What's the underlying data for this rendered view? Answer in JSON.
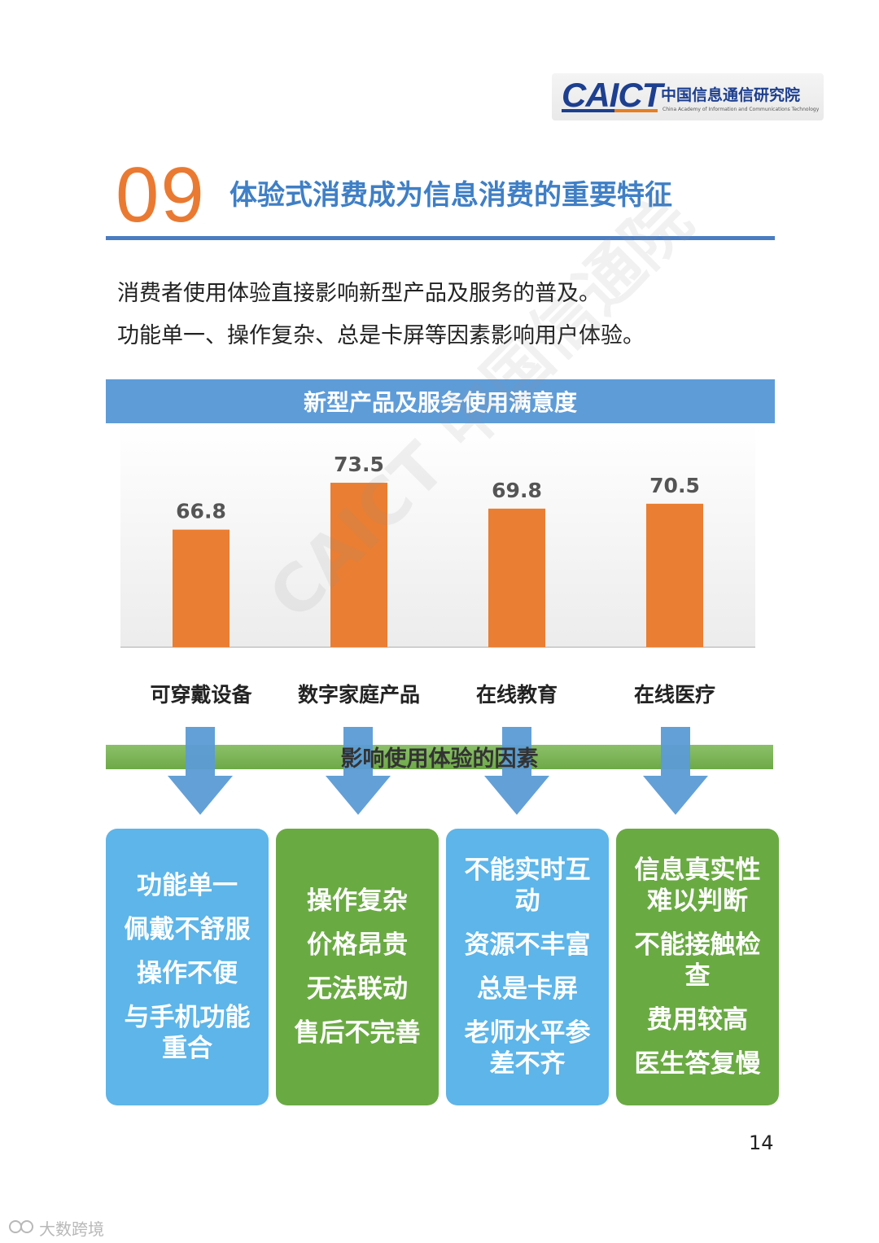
{
  "header": {
    "logo_mark": "CAICT",
    "logo_cn": "中国信息通信研究院",
    "logo_en": "China Academy of Information and Communications Technology"
  },
  "section": {
    "number": "09",
    "title": "体验式消费成为信息消费的重要特征"
  },
  "intro": {
    "line1": "消费者使用体验直接影响新型产品及服务的普及。",
    "line2": "功能单一、操作复杂、总是卡屏等因素影响用户体验。"
  },
  "chart_data": {
    "type": "bar",
    "title": "新型产品及服务使用满意度",
    "categories": [
      "可穿戴设备",
      "数字家庭产品",
      "在线教育",
      "在线医疗"
    ],
    "values": [
      66.8,
      73.5,
      69.8,
      70.5
    ],
    "data_labels": [
      "66.8",
      "73.5",
      "69.8",
      "70.5"
    ],
    "bar_color": "#ea7e32",
    "ylim": [
      0,
      80
    ],
    "grid": false,
    "xlabel": "",
    "ylabel": ""
  },
  "factors": {
    "title": "影响使用体验的因素",
    "boxes": [
      {
        "color": "blue",
        "items": [
          "功能单一",
          "佩戴不舒服",
          "操作不便",
          "与手机功能重合"
        ]
      },
      {
        "color": "green",
        "items": [
          "操作复杂",
          "价格昂贵",
          "无法联动",
          "售后不完善"
        ]
      },
      {
        "color": "blue",
        "items": [
          "不能实时互动",
          "资源不丰富",
          "总是卡屏",
          "老师水平参差不齐"
        ]
      },
      {
        "color": "green",
        "items": [
          "信息真实性难以判断",
          "不能接触检查",
          "费用较高",
          "医生答复慢"
        ]
      }
    ]
  },
  "page_number": "14",
  "watermark": {
    "text": "大数跨境",
    "diagonal": "CAICT 中国信通院"
  },
  "colors": {
    "accent_orange": "#ea7a31",
    "title_blue": "#3f7fc6",
    "band_blue": "#5e9cd8",
    "box_blue": "#5db5e9",
    "box_green": "#6aaa43",
    "arrow_blue": "#5b9bd5"
  }
}
